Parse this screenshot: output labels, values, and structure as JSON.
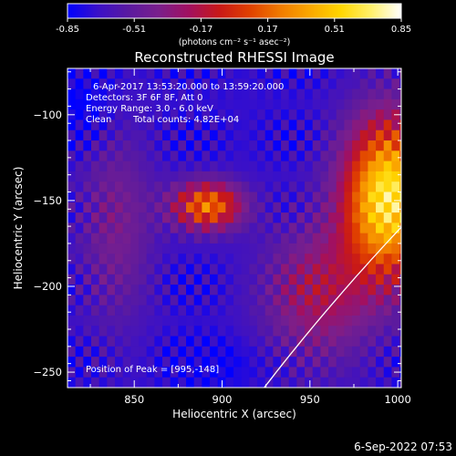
{
  "chart_data": {
    "type": "heatmap",
    "title": "Reconstructed RHESSI Image",
    "xlabel": "Heliocentric X (arcsec)",
    "ylabel": "Heliocentric Y (arcsec)",
    "xlim": [
      812,
      1002
    ],
    "ylim": [
      -259,
      -73
    ],
    "xticks": [
      850,
      900,
      950,
      1000
    ],
    "yticks": [
      -250,
      -200,
      -150,
      -100
    ],
    "colorbar": {
      "ticks": [
        "-0.85",
        "-0.51",
        "-0.17",
        "0.17",
        "0.51",
        "0.85"
      ],
      "range": [
        -0.85,
        0.85
      ],
      "unit_text": "(photons cm⁻² s⁻¹ asec⁻²)",
      "colormap": [
        "#0000ff",
        "#3a10c8",
        "#5a1aa0",
        "#7a1f8c",
        "#a21060",
        "#c81818",
        "#e04000",
        "#f07a00",
        "#fba800",
        "#ffd600",
        "#fff06a",
        "#ffffff"
      ]
    },
    "annotations": {
      "line1": "6-Apr-2017 13:53:20.000 to 13:59:20.000",
      "line2": "Detectors: 3F 6F 8F, Att 0",
      "line3": "Energy Range: 3.0 - 6.0 keV",
      "line4a": "Clean",
      "line4b": "Total counts: 4.82E+04",
      "peak": "Position of Peak = [995,-148]"
    },
    "peak": {
      "x": 995,
      "y": -148
    },
    "secondary_source": {
      "x": 900,
      "y": -150
    },
    "solar_limb": true,
    "grid": false,
    "timestamp": "6-Sep-2022 07:53"
  }
}
